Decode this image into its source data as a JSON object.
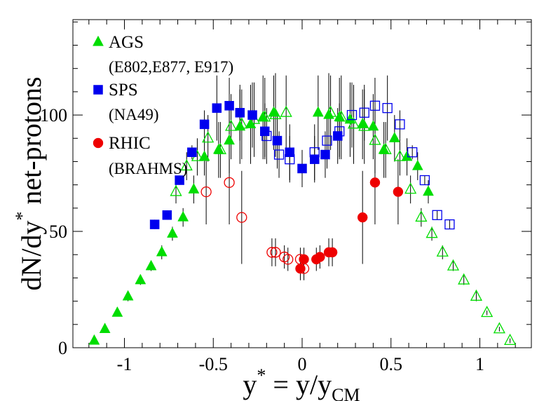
{
  "chart_data": {
    "type": "scatter",
    "xlabel": {
      "main": "y",
      "sup": "*",
      "rest": " = y/y",
      "sub": "CM"
    },
    "ylabel": {
      "main": "dN/dy",
      "sup": "*",
      "rest": "  net-protons"
    },
    "xlim": [
      -1.29,
      1.29
    ],
    "ylim": [
      0,
      141
    ],
    "xticks": [
      -1,
      -0.5,
      0,
      0.5,
      1
    ],
    "xtick_labels": [
      "-1",
      "-0.5",
      "0",
      "0.5",
      "1"
    ],
    "yticks": [
      0,
      50,
      100
    ],
    "ytick_labels": [
      "0",
      "50",
      "100"
    ],
    "legend_position": "top-left",
    "legend": [
      {
        "label": "AGS",
        "sub": "(E802,E877, E917)",
        "marker": "triangle",
        "color": "#00dd00"
      },
      {
        "label": "SPS",
        "sub": "(NA49)",
        "marker": "square",
        "color": "#0000ee"
      },
      {
        "label": "RHIC",
        "sub": "(BRAHMS)",
        "marker": "circle",
        "color": "#ee0000"
      }
    ],
    "series": [
      {
        "name": "AGS",
        "marker": "triangle",
        "color": "#00dd00",
        "filled": true,
        "x": [
          -1.17,
          -1.11,
          -1.04,
          -0.98,
          -0.91,
          -0.85,
          -0.79,
          -0.73,
          -0.67,
          -0.61,
          -0.55,
          -0.47,
          -0.41,
          -0.35,
          -0.29,
          -0.22,
          -0.16,
          0.09,
          0.15,
          0.21,
          0.27,
          0.34,
          0.4,
          0.46,
          0.52,
          0.59,
          0.65,
          0.71
        ],
        "y": [
          3,
          8,
          15,
          22,
          29,
          35,
          41,
          49,
          56,
          68,
          82,
          85,
          89,
          95,
          96,
          99,
          101,
          101,
          100,
          99,
          98,
          96,
          95,
          85,
          90,
          82,
          78,
          67
        ],
        "yerr": [
          1,
          1,
          1,
          2,
          2,
          2,
          3,
          3,
          4,
          6,
          8,
          12,
          14,
          16,
          17,
          18,
          16,
          16,
          18,
          17,
          16,
          15,
          14,
          12,
          10,
          8,
          6,
          5
        ]
      },
      {
        "name": "AGS (reflected)",
        "marker": "triangle",
        "color": "#00dd00",
        "filled": false,
        "x": [
          -0.71,
          -0.65,
          -0.59,
          -0.53,
          -0.46,
          -0.4,
          -0.34,
          -0.27,
          -0.21,
          -0.15,
          -0.09,
          0.16,
          0.22,
          0.29,
          0.35,
          0.41,
          0.47,
          0.55,
          0.61,
          0.67,
          0.73,
          0.79,
          0.85,
          0.91,
          0.98,
          1.04,
          1.11,
          1.17
        ],
        "y": [
          67,
          78,
          82,
          90,
          85,
          95,
          96,
          98,
          99,
          100,
          101,
          101,
          99,
          96,
          95,
          89,
          85,
          82,
          68,
          56,
          49,
          41,
          35,
          29,
          22,
          15,
          8,
          3
        ],
        "yerr": [
          5,
          6,
          8,
          10,
          12,
          14,
          15,
          16,
          17,
          18,
          16,
          16,
          18,
          17,
          16,
          14,
          12,
          8,
          6,
          4,
          3,
          3,
          2,
          2,
          2,
          1,
          1,
          1
        ]
      },
      {
        "name": "SPS",
        "marker": "square",
        "color": "#0000ee",
        "filled": true,
        "x": [
          -0.83,
          -0.76,
          -0.69,
          -0.62,
          -0.55,
          -0.48,
          -0.41,
          -0.35,
          -0.28,
          -0.21,
          -0.14,
          -0.07,
          0,
          0.07,
          0.13,
          0.2
        ],
        "y": [
          53,
          57,
          72,
          84,
          96,
          103,
          104,
          101,
          100,
          93,
          89,
          84,
          77,
          81,
          83,
          91
        ],
        "yerr": [
          2,
          2,
          2,
          3,
          6,
          14,
          12,
          12,
          14,
          12,
          12,
          12,
          8,
          10,
          10,
          12
        ]
      },
      {
        "name": "SPS (reflected)",
        "marker": "square",
        "color": "#0000ee",
        "filled": false,
        "x": [
          -0.2,
          -0.13,
          -0.07,
          0.07,
          0.14,
          0.21,
          0.28,
          0.35,
          0.41,
          0.48,
          0.55,
          0.62,
          0.69,
          0.76,
          0.83
        ],
        "y": [
          91,
          83,
          81,
          84,
          89,
          93,
          100,
          101,
          104,
          103,
          96,
          84,
          72,
          57,
          53
        ],
        "yerr": [
          12,
          10,
          10,
          12,
          12,
          12,
          14,
          12,
          12,
          14,
          6,
          3,
          2,
          2,
          2
        ]
      },
      {
        "name": "RHIC",
        "marker": "circle",
        "color": "#ee0000",
        "filled": true,
        "x": [
          -0.01,
          0.01,
          0.08,
          0.1,
          0.15,
          0.17,
          0.34,
          0.41,
          0.54
        ],
        "y": [
          34,
          38,
          38,
          39,
          41,
          41,
          56,
          71,
          67
        ],
        "yerr": [
          5,
          5,
          5,
          5,
          6,
          6,
          20,
          18,
          14
        ]
      },
      {
        "name": "RHIC (reflected)",
        "marker": "circle",
        "color": "#ee0000",
        "filled": false,
        "x": [
          -0.54,
          -0.41,
          -0.34,
          -0.17,
          -0.15,
          -0.1,
          -0.08,
          -0.01,
          0.01
        ],
        "y": [
          67,
          71,
          56,
          41,
          41,
          39,
          38,
          38,
          34
        ],
        "yerr": [
          14,
          18,
          20,
          6,
          6,
          5,
          5,
          5,
          5
        ]
      }
    ]
  }
}
